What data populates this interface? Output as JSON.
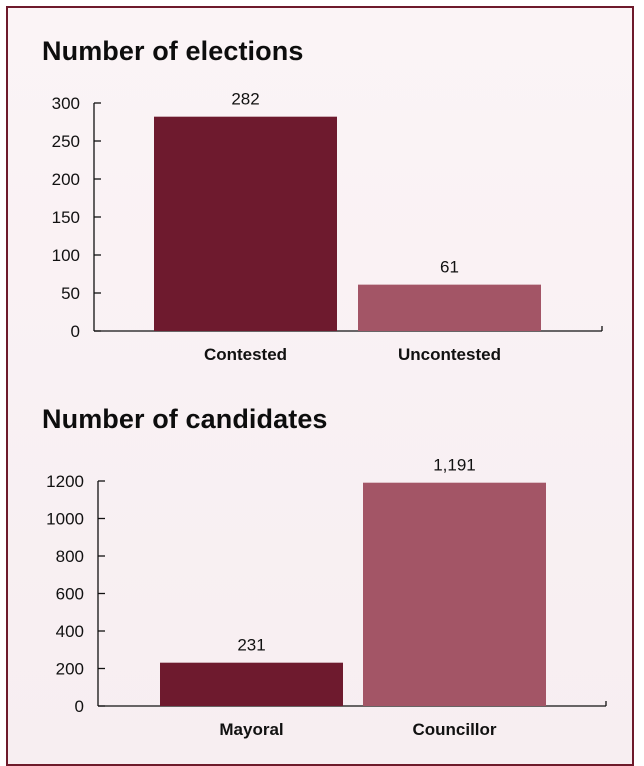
{
  "chart_data": [
    {
      "type": "bar",
      "title": "Number of elections",
      "categories": [
        "Contested",
        "Uncontested"
      ],
      "values": [
        282,
        61
      ],
      "data_labels": [
        "282",
        "61"
      ],
      "ylim": [
        0,
        300
      ],
      "yticks": [
        0,
        50,
        100,
        150,
        200,
        250,
        300
      ],
      "colors": [
        "#6e1a2e",
        "#a35566"
      ],
      "grid": false,
      "xlabel": "",
      "ylabel": ""
    },
    {
      "type": "bar",
      "title": "Number of candidates",
      "categories": [
        "Mayoral",
        "Councillor"
      ],
      "values": [
        231,
        1191
      ],
      "data_labels": [
        "231",
        "1,191"
      ],
      "ylim": [
        0,
        1200
      ],
      "yticks": [
        0,
        200,
        400,
        600,
        800,
        1000,
        1200
      ],
      "colors": [
        "#6e1a2e",
        "#a35566"
      ],
      "grid": false,
      "xlabel": "",
      "ylabel": ""
    }
  ]
}
